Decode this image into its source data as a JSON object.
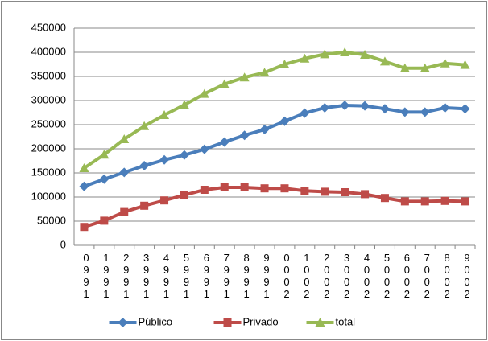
{
  "chart_data": {
    "type": "line",
    "categories": [
      "1990",
      "1991",
      "1992",
      "1993",
      "1994",
      "1995",
      "1996",
      "1997",
      "1998",
      "1999",
      "2000",
      "2001",
      "2002",
      "2003",
      "2004",
      "2005",
      "2006",
      "2007",
      "2008",
      "2009"
    ],
    "series": [
      {
        "name": "Público",
        "color": "#4a7ebb",
        "marker": "diamond",
        "values": [
          122000,
          137000,
          151000,
          165000,
          177000,
          187000,
          199000,
          214000,
          228000,
          240000,
          257000,
          274000,
          285000,
          290000,
          289000,
          283000,
          276000,
          276000,
          285000,
          283000
        ]
      },
      {
        "name": "Privado",
        "color": "#be4b48",
        "marker": "square",
        "values": [
          38000,
          51000,
          69000,
          82000,
          93000,
          104000,
          115000,
          120000,
          120000,
          118000,
          118000,
          113000,
          111000,
          110000,
          106000,
          98000,
          91000,
          91000,
          92000,
          91000
        ]
      },
      {
        "name": "total",
        "color": "#98b954",
        "marker": "triangle",
        "values": [
          160000,
          188000,
          220000,
          247000,
          270000,
          291000,
          314000,
          334000,
          348000,
          358000,
          375000,
          387000,
          396000,
          400000,
          395000,
          381000,
          367000,
          367000,
          377000,
          374000
        ]
      }
    ],
    "ylim": [
      0,
      450000
    ],
    "yticks": [
      0,
      50000,
      100000,
      150000,
      200000,
      250000,
      300000,
      350000,
      400000,
      450000
    ],
    "grid": true,
    "legend": "bottom"
  }
}
